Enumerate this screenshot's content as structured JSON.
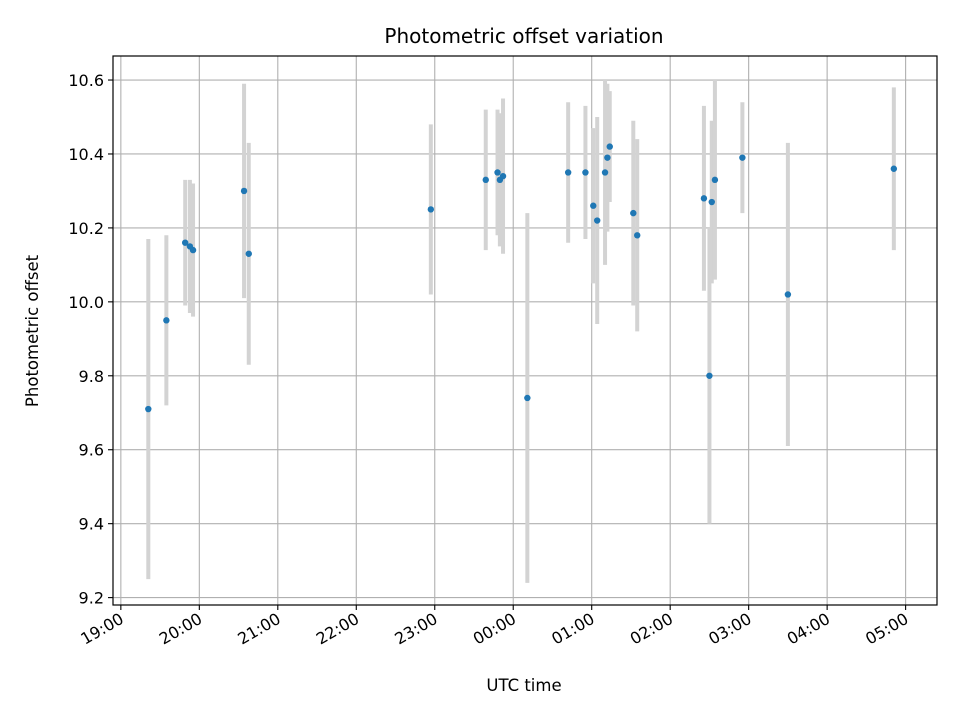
{
  "chart_data": {
    "type": "scatter",
    "title": "Photometric offset variation",
    "xlabel": "UTC time",
    "ylabel": "Photometric offset",
    "grid": true,
    "xlim_hours": [
      18.9,
      29.4
    ],
    "ylim": [
      9.18,
      10.665
    ],
    "x_ticks": [
      {
        "hour": 19,
        "label": "19:00"
      },
      {
        "hour": 20,
        "label": "20:00"
      },
      {
        "hour": 21,
        "label": "21:00"
      },
      {
        "hour": 22,
        "label": "22:00"
      },
      {
        "hour": 23,
        "label": "23:00"
      },
      {
        "hour": 24,
        "label": "00:00"
      },
      {
        "hour": 25,
        "label": "01:00"
      },
      {
        "hour": 26,
        "label": "02:00"
      },
      {
        "hour": 27,
        "label": "03:00"
      },
      {
        "hour": 28,
        "label": "04:00"
      },
      {
        "hour": 29,
        "label": "05:00"
      }
    ],
    "y_ticks": [
      {
        "value": 9.2,
        "label": "9.2"
      },
      {
        "value": 9.4,
        "label": "9.4"
      },
      {
        "value": 9.6,
        "label": "9.6"
      },
      {
        "value": 9.8,
        "label": "9.8"
      },
      {
        "value": 10.0,
        "label": "10.0"
      },
      {
        "value": 10.2,
        "label": "10.2"
      },
      {
        "value": 10.4,
        "label": "10.4"
      },
      {
        "value": 10.6,
        "label": "10.6"
      }
    ],
    "colors": {
      "point": "#1f77b4",
      "errorbar": "#d3d3d3",
      "grid": "#b0b0b0"
    },
    "points": [
      {
        "hour": 19.35,
        "y": 9.71,
        "err": 0.46
      },
      {
        "hour": 19.58,
        "y": 9.95,
        "err": 0.23
      },
      {
        "hour": 19.82,
        "y": 10.16,
        "err": 0.17
      },
      {
        "hour": 19.88,
        "y": 10.15,
        "err": 0.18
      },
      {
        "hour": 19.92,
        "y": 10.14,
        "err": 0.18
      },
      {
        "hour": 20.57,
        "y": 10.3,
        "err": 0.29
      },
      {
        "hour": 20.63,
        "y": 10.13,
        "err": 0.3
      },
      {
        "hour": 22.95,
        "y": 10.25,
        "err": 0.23
      },
      {
        "hour": 23.65,
        "y": 10.33,
        "err": 0.19
      },
      {
        "hour": 23.8,
        "y": 10.35,
        "err": 0.17
      },
      {
        "hour": 23.83,
        "y": 10.33,
        "err": 0.18
      },
      {
        "hour": 23.87,
        "y": 10.34,
        "err": 0.21
      },
      {
        "hour": 24.18,
        "y": 9.74,
        "err": 0.5
      },
      {
        "hour": 24.7,
        "y": 10.35,
        "err": 0.19
      },
      {
        "hour": 24.92,
        "y": 10.35,
        "err": 0.18
      },
      {
        "hour": 25.02,
        "y": 10.26,
        "err": 0.21
      },
      {
        "hour": 25.07,
        "y": 10.22,
        "err": 0.28
      },
      {
        "hour": 25.17,
        "y": 10.35,
        "err": 0.25
      },
      {
        "hour": 25.2,
        "y": 10.39,
        "err": 0.2
      },
      {
        "hour": 25.23,
        "y": 10.42,
        "err": 0.15
      },
      {
        "hour": 25.53,
        "y": 10.24,
        "err": 0.25
      },
      {
        "hour": 25.58,
        "y": 10.18,
        "err": 0.26
      },
      {
        "hour": 26.43,
        "y": 10.28,
        "err": 0.25
      },
      {
        "hour": 26.5,
        "y": 9.8,
        "err": 0.4
      },
      {
        "hour": 26.53,
        "y": 10.27,
        "err": 0.22
      },
      {
        "hour": 26.57,
        "y": 10.33,
        "err": 0.27
      },
      {
        "hour": 26.92,
        "y": 10.39,
        "err": 0.15
      },
      {
        "hour": 27.5,
        "y": 10.02,
        "err": 0.41
      },
      {
        "hour": 28.85,
        "y": 10.36,
        "err": 0.22
      }
    ]
  }
}
